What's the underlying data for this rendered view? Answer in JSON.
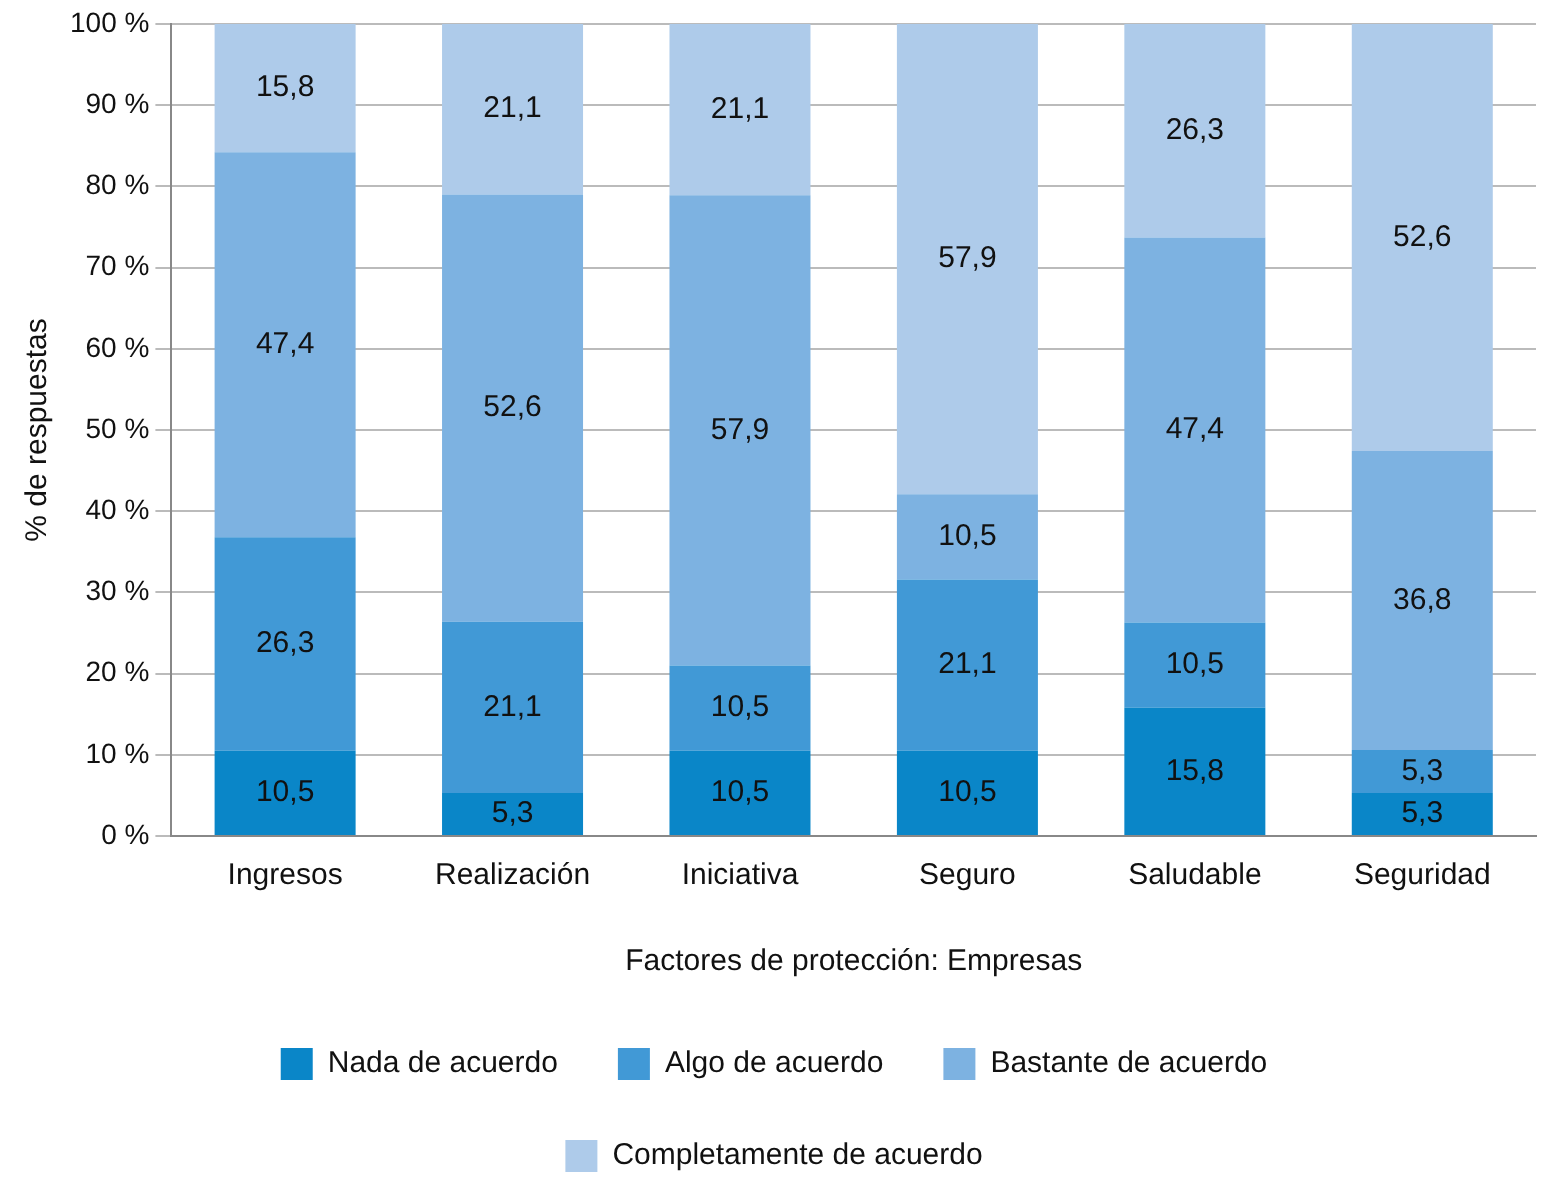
{
  "chart_data": {
    "type": "bar",
    "stacked": true,
    "xlabel": "Factores de protección: Empresas",
    "ylabel": "% de respuestas",
    "categories": [
      "Ingresos",
      "Realización",
      "Iniciativa",
      "Seguro",
      "Saludable",
      "Seguridad"
    ],
    "series": [
      {
        "name": "Nada de acuerdo",
        "color": "#0a86c8",
        "values": [
          10.5,
          5.3,
          10.5,
          10.5,
          15.8,
          5.3
        ],
        "value_labels": [
          "10,5",
          "5,3",
          "10,5",
          "10,5",
          "15,8",
          "5,3"
        ]
      },
      {
        "name": "Algo de acuerdo",
        "color": "#4199d6",
        "values": [
          26.3,
          21.1,
          10.5,
          21.1,
          10.5,
          5.3
        ],
        "value_labels": [
          "26,3",
          "21,1",
          "10,5",
          "21,1",
          "10,5",
          "5,3"
        ]
      },
      {
        "name": "Bastante de acuerdo",
        "color": "#7db2e1",
        "values": [
          47.4,
          52.6,
          57.9,
          10.5,
          47.4,
          36.8
        ],
        "value_labels": [
          "47,4",
          "52,6",
          "57,9",
          "10,5",
          "47,4",
          "36,8"
        ]
      },
      {
        "name": "Completamente de acuerdo",
        "color": "#aecbea",
        "values": [
          15.8,
          21.1,
          21.1,
          57.9,
          26.3,
          52.6
        ],
        "value_labels": [
          "15,8",
          "21,1",
          "21,1",
          "57,9",
          "26,3",
          "52,6"
        ]
      }
    ],
    "ylim": [
      0,
      100
    ],
    "yticks": [
      {
        "value": 0,
        "label": "0 %"
      },
      {
        "value": 10,
        "label": "10 %"
      },
      {
        "value": 20,
        "label": "20 %"
      },
      {
        "value": 30,
        "label": "30 %"
      },
      {
        "value": 40,
        "label": "40 %"
      },
      {
        "value": 50,
        "label": "50 %"
      },
      {
        "value": 60,
        "label": "60 %"
      },
      {
        "value": 70,
        "label": "70 %"
      },
      {
        "value": 80,
        "label": "80 %"
      },
      {
        "value": 90,
        "label": "90 %"
      },
      {
        "value": 100,
        "label": "100 %"
      }
    ],
    "grid": "y",
    "legend": "bottom"
  }
}
